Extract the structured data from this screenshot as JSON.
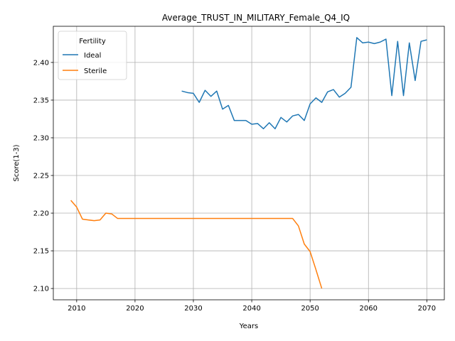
{
  "chart_data": {
    "type": "line",
    "title": "Average_TRUST_IN_MILITARY_Female_Q4_IQ",
    "xlabel": "Years",
    "ylabel": "Score(1-3)",
    "xlim": [
      2006,
      2073
    ],
    "ylim": [
      2.085,
      2.448
    ],
    "x_ticks": [
      2010,
      2020,
      2030,
      2040,
      2050,
      2060,
      2070
    ],
    "y_ticks": [
      2.1,
      2.15,
      2.2,
      2.25,
      2.3,
      2.35,
      2.4
    ],
    "x_tick_labels": [
      "2010",
      "2020",
      "2030",
      "2040",
      "2050",
      "2060",
      "2070"
    ],
    "y_tick_labels": [
      "2.10",
      "2.15",
      "2.20",
      "2.25",
      "2.30",
      "2.35",
      "2.40"
    ],
    "grid": true,
    "legend": {
      "title": "Fertility",
      "placement": "top-left"
    },
    "series": [
      {
        "name": "Ideal",
        "color": "#1f77b4",
        "x": [
          2028,
          2029,
          2030,
          2031,
          2032,
          2033,
          2034,
          2035,
          2036,
          2037,
          2038,
          2039,
          2040,
          2041,
          2042,
          2043,
          2044,
          2045,
          2046,
          2047,
          2048,
          2049,
          2050,
          2051,
          2052,
          2053,
          2054,
          2055,
          2056,
          2057,
          2058,
          2059,
          2060,
          2061,
          2062,
          2063,
          2064,
          2065,
          2066,
          2067,
          2068,
          2069,
          2070
        ],
        "y": [
          2.362,
          2.36,
          2.359,
          2.347,
          2.363,
          2.355,
          2.362,
          2.338,
          2.343,
          2.323,
          2.323,
          2.323,
          2.318,
          2.319,
          2.312,
          2.32,
          2.312,
          2.327,
          2.321,
          2.329,
          2.331,
          2.323,
          2.345,
          2.353,
          2.347,
          2.361,
          2.364,
          2.354,
          2.359,
          2.367,
          2.433,
          2.426,
          2.427,
          2.425,
          2.427,
          2.431,
          2.356,
          2.428,
          2.356,
          2.426,
          2.376,
          2.428,
          2.43
        ]
      },
      {
        "name": "Sterile",
        "color": "#ff7f0e",
        "x": [
          2009,
          2010,
          2011,
          2012,
          2013,
          2014,
          2015,
          2016,
          2017,
          2018,
          2019,
          2020,
          2021,
          2022,
          2023,
          2024,
          2025,
          2026,
          2027,
          2028,
          2029,
          2030,
          2031,
          2032,
          2033,
          2034,
          2035,
          2036,
          2037,
          2038,
          2039,
          2040,
          2041,
          2042,
          2043,
          2044,
          2045,
          2046,
          2047,
          2048,
          2049,
          2050,
          2051,
          2052
        ],
        "y": [
          2.217,
          2.208,
          2.192,
          2.191,
          2.19,
          2.191,
          2.2,
          2.199,
          2.193,
          2.193,
          2.193,
          2.193,
          2.193,
          2.193,
          2.193,
          2.193,
          2.193,
          2.193,
          2.193,
          2.193,
          2.193,
          2.193,
          2.193,
          2.193,
          2.193,
          2.193,
          2.193,
          2.193,
          2.193,
          2.193,
          2.193,
          2.193,
          2.193,
          2.193,
          2.193,
          2.193,
          2.193,
          2.193,
          2.193,
          2.183,
          2.159,
          2.149,
          2.125,
          2.1
        ]
      }
    ]
  }
}
